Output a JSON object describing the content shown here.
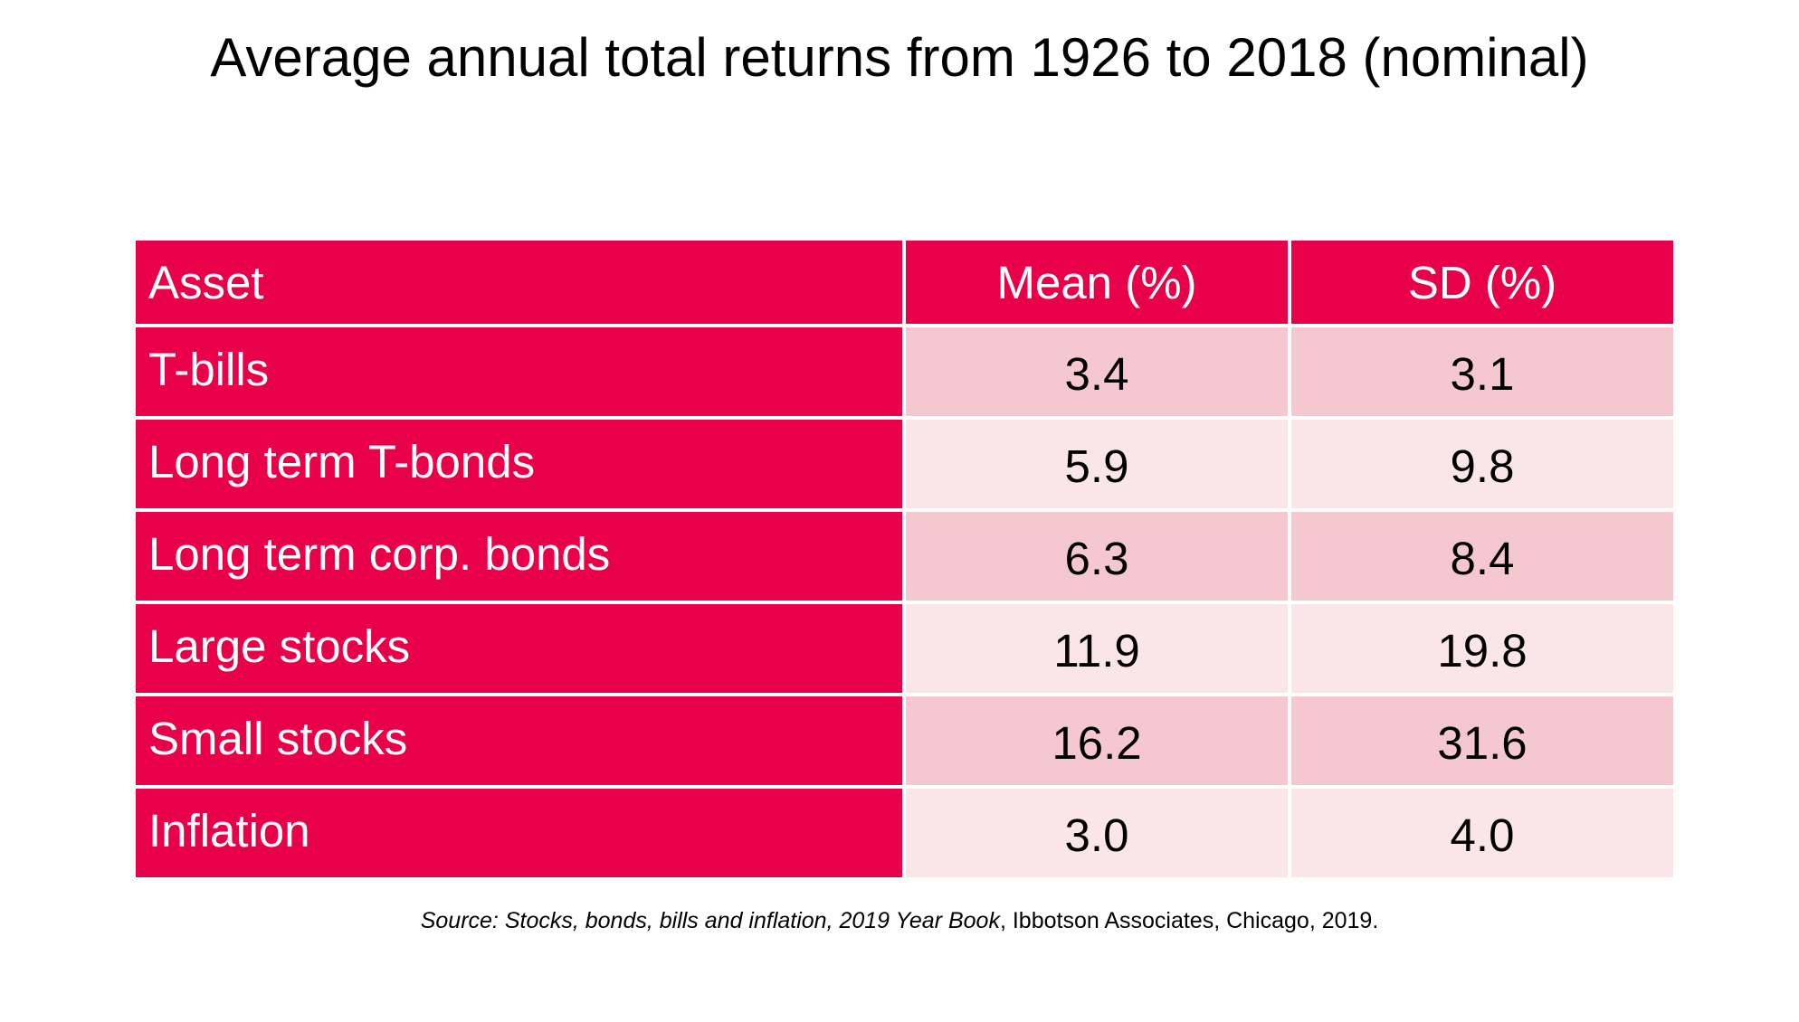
{
  "title": "Average annual total returns from 1926 to 2018 (nominal)",
  "table": {
    "headers": {
      "asset": "Asset",
      "mean": "Mean (%)",
      "sd": "SD (%)"
    },
    "rows": [
      {
        "asset": "T-bills",
        "mean": "3.4",
        "sd": "3.1"
      },
      {
        "asset": "Long term T-bonds",
        "mean": "5.9",
        "sd": "9.8"
      },
      {
        "asset": "Long term corp. bonds",
        "mean": "6.3",
        "sd": "8.4"
      },
      {
        "asset": "Large stocks",
        "mean": "11.9",
        "sd": "19.8"
      },
      {
        "asset": "Small stocks",
        "mean": "16.2",
        "sd": "31.6"
      },
      {
        "asset": "Inflation",
        "mean": "3.0",
        "sd": "4.0"
      }
    ]
  },
  "source": {
    "italic": "Source: Stocks, bonds, bills and inflation, 2019 Year Book",
    "plain": ", Ibbotson Associates, Chicago, 2019."
  },
  "colors": {
    "header_and_asset_fill": "#e8004a",
    "band_dark": "#f5c8cf",
    "band_light": "#fae6e8"
  }
}
